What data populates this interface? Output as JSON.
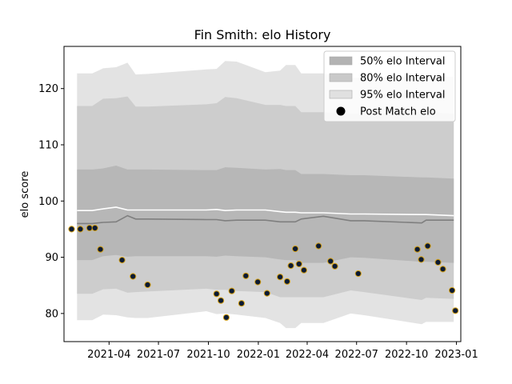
{
  "chart_data": {
    "type": "area",
    "title": "Fin Smith: elo History",
    "xlabel": "",
    "ylabel": "elo score",
    "xlim": [
      "2021-01-08",
      "2023-01-09"
    ],
    "ylim": [
      75,
      127.5
    ],
    "x_ticks": [
      "2021-04-01",
      "2021-07-01",
      "2021-10-01",
      "2022-01-01",
      "2022-04-01",
      "2022-07-01",
      "2022-10-01",
      "2023-01-01"
    ],
    "x_tick_labels": [
      "2021-04",
      "2021-07",
      "2021-10",
      "2022-01",
      "2022-04",
      "2022-07",
      "2022-10",
      "2023-01"
    ],
    "y_ticks": [
      80,
      90,
      100,
      110,
      120
    ],
    "y_tick_labels": [
      "80",
      "90",
      "100",
      "110",
      "120"
    ],
    "legend_position": "upper-right",
    "grid": false,
    "series": [
      {
        "name": "95% elo Interval",
        "kind": "band",
        "color": "#e3e3e3",
        "x": [
          "2021-02-01",
          "2021-03-01",
          "2021-03-21",
          "2021-04-14",
          "2021-05-05",
          "2021-05-20",
          "2021-06-11",
          "2021-09-27",
          "2021-10-16",
          "2021-11-01",
          "2021-11-22",
          "2022-01-14",
          "2022-02-10",
          "2022-02-21",
          "2022-03-10",
          "2022-03-21",
          "2022-05-01",
          "2022-06-20",
          "2022-07-15",
          "2022-10-29",
          "2022-11-06",
          "2022-12-27"
        ],
        "lower": [
          78.8,
          78.8,
          79.8,
          79.7,
          79.3,
          79.2,
          79.2,
          80.4,
          79.9,
          80.0,
          79.8,
          79.2,
          78.3,
          77.4,
          77.4,
          78.3,
          78.3,
          80.0,
          79.7,
          78.1,
          78.5,
          78.5
        ],
        "upper": [
          122.7,
          122.7,
          123.6,
          123.8,
          124.6,
          122.5,
          122.6,
          123.4,
          123.5,
          124.9,
          124.8,
          122.9,
          123.2,
          124.2,
          124.2,
          122.7,
          122.7,
          121.9,
          121.9,
          122.1,
          122.1,
          122.1
        ]
      },
      {
        "name": "80% elo Interval",
        "kind": "band",
        "color": "#cdcdcd",
        "x": [
          "2021-02-01",
          "2021-03-01",
          "2021-03-21",
          "2021-04-14",
          "2021-05-05",
          "2021-05-20",
          "2021-06-11",
          "2021-09-27",
          "2021-10-16",
          "2021-11-01",
          "2021-11-22",
          "2022-01-14",
          "2022-02-10",
          "2022-02-21",
          "2022-03-10",
          "2022-03-21",
          "2022-05-01",
          "2022-06-20",
          "2022-07-15",
          "2022-10-29",
          "2022-11-06",
          "2022-12-27"
        ],
        "lower": [
          83.5,
          83.5,
          84.3,
          84.4,
          83.7,
          83.8,
          83.9,
          84.4,
          84.2,
          84.2,
          84.0,
          83.8,
          82.9,
          82.9,
          82.9,
          82.9,
          82.9,
          84.1,
          83.8,
          82.4,
          82.8,
          82.6
        ],
        "upper": [
          116.9,
          116.9,
          118.2,
          118.3,
          118.6,
          116.8,
          116.8,
          117.2,
          117.4,
          118.5,
          118.3,
          117.1,
          117.1,
          116.9,
          116.9,
          115.8,
          115.8,
          115.5,
          115.5,
          115.8,
          115.8,
          115.5
        ]
      },
      {
        "name": "50% elo Interval",
        "kind": "band",
        "color": "#b7b7b7",
        "x": [
          "2021-02-01",
          "2021-03-01",
          "2021-03-21",
          "2021-04-14",
          "2021-05-05",
          "2021-05-20",
          "2021-06-11",
          "2021-09-27",
          "2021-10-16",
          "2021-11-01",
          "2021-11-22",
          "2022-01-14",
          "2022-02-10",
          "2022-02-21",
          "2022-03-10",
          "2022-03-21",
          "2022-05-01",
          "2022-06-20",
          "2022-07-15",
          "2022-10-29",
          "2022-11-06",
          "2022-12-27"
        ],
        "lower": [
          89.5,
          89.5,
          90.2,
          90.4,
          90.1,
          90.2,
          90.2,
          90.2,
          90.1,
          90.3,
          90.2,
          90.0,
          89.6,
          89.5,
          89.5,
          89.0,
          89.0,
          90.0,
          89.9,
          89.2,
          89.2,
          89.0
        ],
        "upper": [
          105.6,
          105.6,
          105.8,
          106.3,
          105.6,
          105.6,
          105.6,
          105.5,
          105.5,
          106.0,
          105.9,
          105.6,
          105.7,
          105.5,
          105.5,
          104.8,
          104.8,
          104.6,
          104.6,
          104.2,
          104.2,
          104.0
        ]
      },
      {
        "name": "",
        "kind": "line",
        "color": "#ffffff",
        "x": [
          "2021-02-01",
          "2021-03-01",
          "2021-03-21",
          "2021-04-14",
          "2021-05-05",
          "2021-05-20",
          "2021-06-11",
          "2021-09-27",
          "2021-10-16",
          "2021-11-01",
          "2021-11-22",
          "2022-01-14",
          "2022-02-10",
          "2022-02-21",
          "2022-03-10",
          "2022-03-21",
          "2022-05-01",
          "2022-06-20",
          "2022-07-15",
          "2022-10-29",
          "2022-11-06",
          "2022-12-27"
        ],
        "values": [
          98.3,
          98.3,
          98.6,
          98.9,
          98.4,
          98.4,
          98.4,
          98.4,
          98.5,
          98.3,
          98.4,
          98.4,
          98.1,
          98.0,
          98.0,
          97.9,
          97.9,
          97.7,
          97.7,
          97.6,
          97.6,
          97.4
        ]
      },
      {
        "name": "",
        "kind": "line",
        "color": "#7f7f7f",
        "x": [
          "2021-02-01",
          "2021-03-01",
          "2021-03-21",
          "2021-04-14",
          "2021-05-05",
          "2021-05-20",
          "2021-06-11",
          "2021-09-27",
          "2021-10-16",
          "2021-11-01",
          "2021-11-22",
          "2022-01-14",
          "2022-02-10",
          "2022-02-21",
          "2022-03-10",
          "2022-03-21",
          "2022-05-01",
          "2022-06-20",
          "2022-07-15",
          "2022-10-29",
          "2022-11-06",
          "2022-12-27"
        ],
        "values": [
          96.0,
          96.0,
          96.2,
          96.3,
          97.4,
          96.8,
          96.8,
          96.7,
          96.7,
          96.5,
          96.6,
          96.6,
          96.3,
          96.3,
          96.3,
          96.8,
          97.3,
          96.5,
          96.5,
          96.1,
          96.6,
          96.6
        ]
      },
      {
        "name": "Post Match elo",
        "kind": "points",
        "color": "#0b1a33",
        "edge_color": "#d4a017",
        "x": [
          "2021-01-22",
          "2021-02-07",
          "2021-02-24",
          "2021-03-06",
          "2021-03-16",
          "2021-04-25",
          "2021-05-15",
          "2021-06-11",
          "2021-10-16",
          "2021-10-24",
          "2021-11-03",
          "2021-11-13",
          "2021-12-01",
          "2021-12-09",
          "2021-12-31",
          "2022-01-17",
          "2022-02-10",
          "2022-02-23",
          "2022-03-02",
          "2022-03-10",
          "2022-03-17",
          "2022-03-26",
          "2022-04-22",
          "2022-05-14",
          "2022-05-22",
          "2022-07-04",
          "2022-10-21",
          "2022-10-28",
          "2022-11-09",
          "2022-11-28",
          "2022-12-07",
          "2022-12-24",
          "2022-12-30"
        ],
        "values": [
          95.0,
          95.0,
          95.2,
          95.2,
          91.4,
          89.5,
          86.6,
          85.1,
          83.5,
          82.3,
          79.3,
          84.0,
          81.8,
          86.7,
          85.6,
          83.6,
          86.5,
          85.7,
          88.5,
          91.5,
          88.8,
          87.7,
          92.0,
          89.3,
          88.4,
          87.1,
          91.4,
          89.6,
          92.0,
          89.1,
          87.9,
          84.1,
          80.5
        ]
      }
    ]
  }
}
